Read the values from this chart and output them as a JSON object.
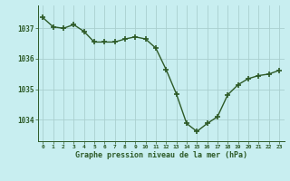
{
  "x": [
    0,
    1,
    2,
    3,
    4,
    5,
    6,
    7,
    8,
    9,
    10,
    11,
    12,
    13,
    14,
    15,
    16,
    17,
    18,
    19,
    20,
    21,
    22,
    23
  ],
  "y": [
    1037.35,
    1037.05,
    1037.0,
    1037.12,
    1036.9,
    1036.55,
    1036.55,
    1036.55,
    1036.65,
    1036.72,
    1036.65,
    1036.35,
    1035.65,
    1034.85,
    1033.88,
    1033.62,
    1033.88,
    1034.1,
    1034.82,
    1035.15,
    1035.35,
    1035.45,
    1035.5,
    1035.62
  ],
  "line_color": "#2d5a27",
  "marker_color": "#2d5a27",
  "bg_color": "#c8eef0",
  "grid_color": "#aacfcf",
  "xlabel": "Graphe pression niveau de la mer (hPa)",
  "xlabel_color": "#2d5a27",
  "tick_color": "#2d5a27",
  "ylim_min": 1033.3,
  "ylim_max": 1037.75,
  "yticks": [
    1034,
    1035,
    1036,
    1037
  ],
  "xticks": [
    0,
    1,
    2,
    3,
    4,
    5,
    6,
    7,
    8,
    9,
    10,
    11,
    12,
    13,
    14,
    15,
    16,
    17,
    18,
    19,
    20,
    21,
    22,
    23
  ]
}
